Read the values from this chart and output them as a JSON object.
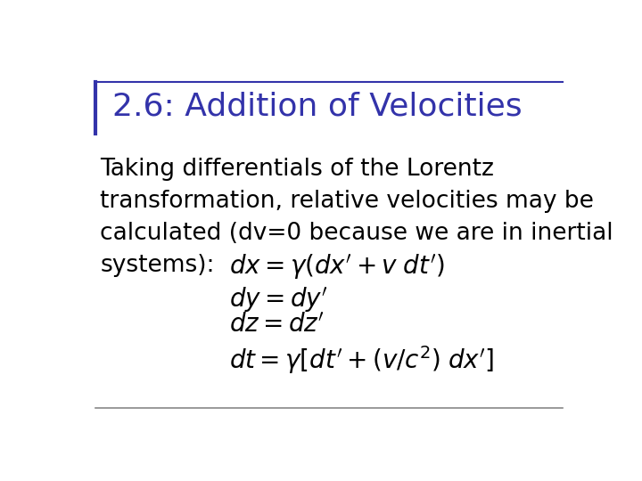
{
  "title": "2.6: Addition of Velocities",
  "title_color": "#3333aa",
  "title_fontsize": 26,
  "body_text": "Taking differentials of the Lorentz\ntransformation, relative velocities may be\ncalculated (dv=0 because we are in inertial\nsystems):",
  "body_fontsize": 19,
  "equations": [
    "$dx = \\gamma(dx'+v\\; dt')$",
    "$dy = dy'$",
    "$dz = dz'$",
    "$dt = \\gamma[dt'+(v/c^2)\\; dx']$"
  ],
  "eq_fontsize": 20,
  "background_color": "#ffffff",
  "line_color": "#888888",
  "title_bar_color": "#3333aa",
  "left_bar_color": "#3333aa"
}
